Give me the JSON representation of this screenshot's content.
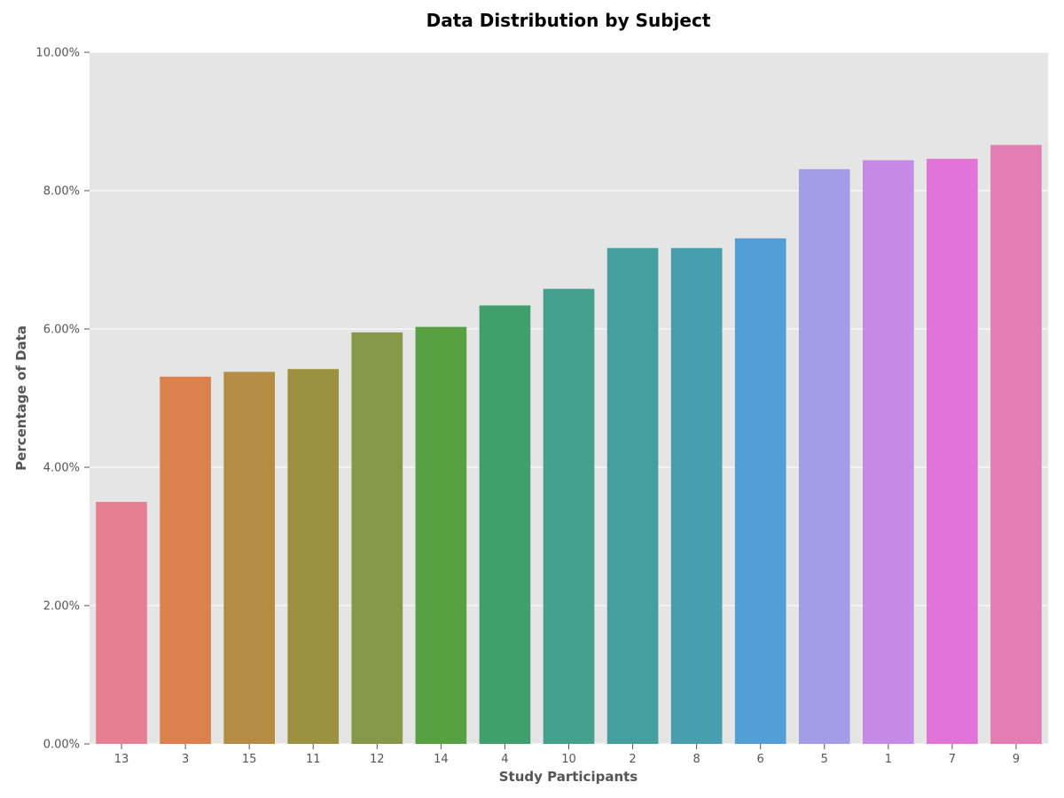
{
  "chart_data": {
    "type": "bar",
    "title": "Data Distribution by Subject",
    "xlabel": "Study Participants",
    "ylabel": "Percentage of Data",
    "categories": [
      "13",
      "3",
      "15",
      "11",
      "12",
      "14",
      "4",
      "10",
      "2",
      "8",
      "6",
      "5",
      "1",
      "7",
      "9"
    ],
    "values": [
      3.5,
      5.31,
      5.38,
      5.42,
      5.95,
      6.03,
      6.34,
      6.58,
      7.17,
      7.17,
      7.31,
      8.31,
      8.44,
      8.46,
      8.66
    ],
    "ylim": [
      0,
      10
    ],
    "yticks": [
      0,
      2,
      4,
      6,
      8,
      10
    ],
    "ytick_labels": [
      "0.00%",
      "2.00%",
      "4.00%",
      "6.00%",
      "8.00%",
      "10.00%"
    ],
    "grid": true,
    "grid_axis": "y",
    "background_color": "#e5e5e5",
    "colors": [
      "#e77f92",
      "#db814d",
      "#b48c44",
      "#9c913f",
      "#86984a",
      "#58a142",
      "#3fa06d",
      "#43a18e",
      "#449f9e",
      "#479ead",
      "#529fd5",
      "#a39de7",
      "#c689e6",
      "#e273d8",
      "#e37db3"
    ]
  }
}
